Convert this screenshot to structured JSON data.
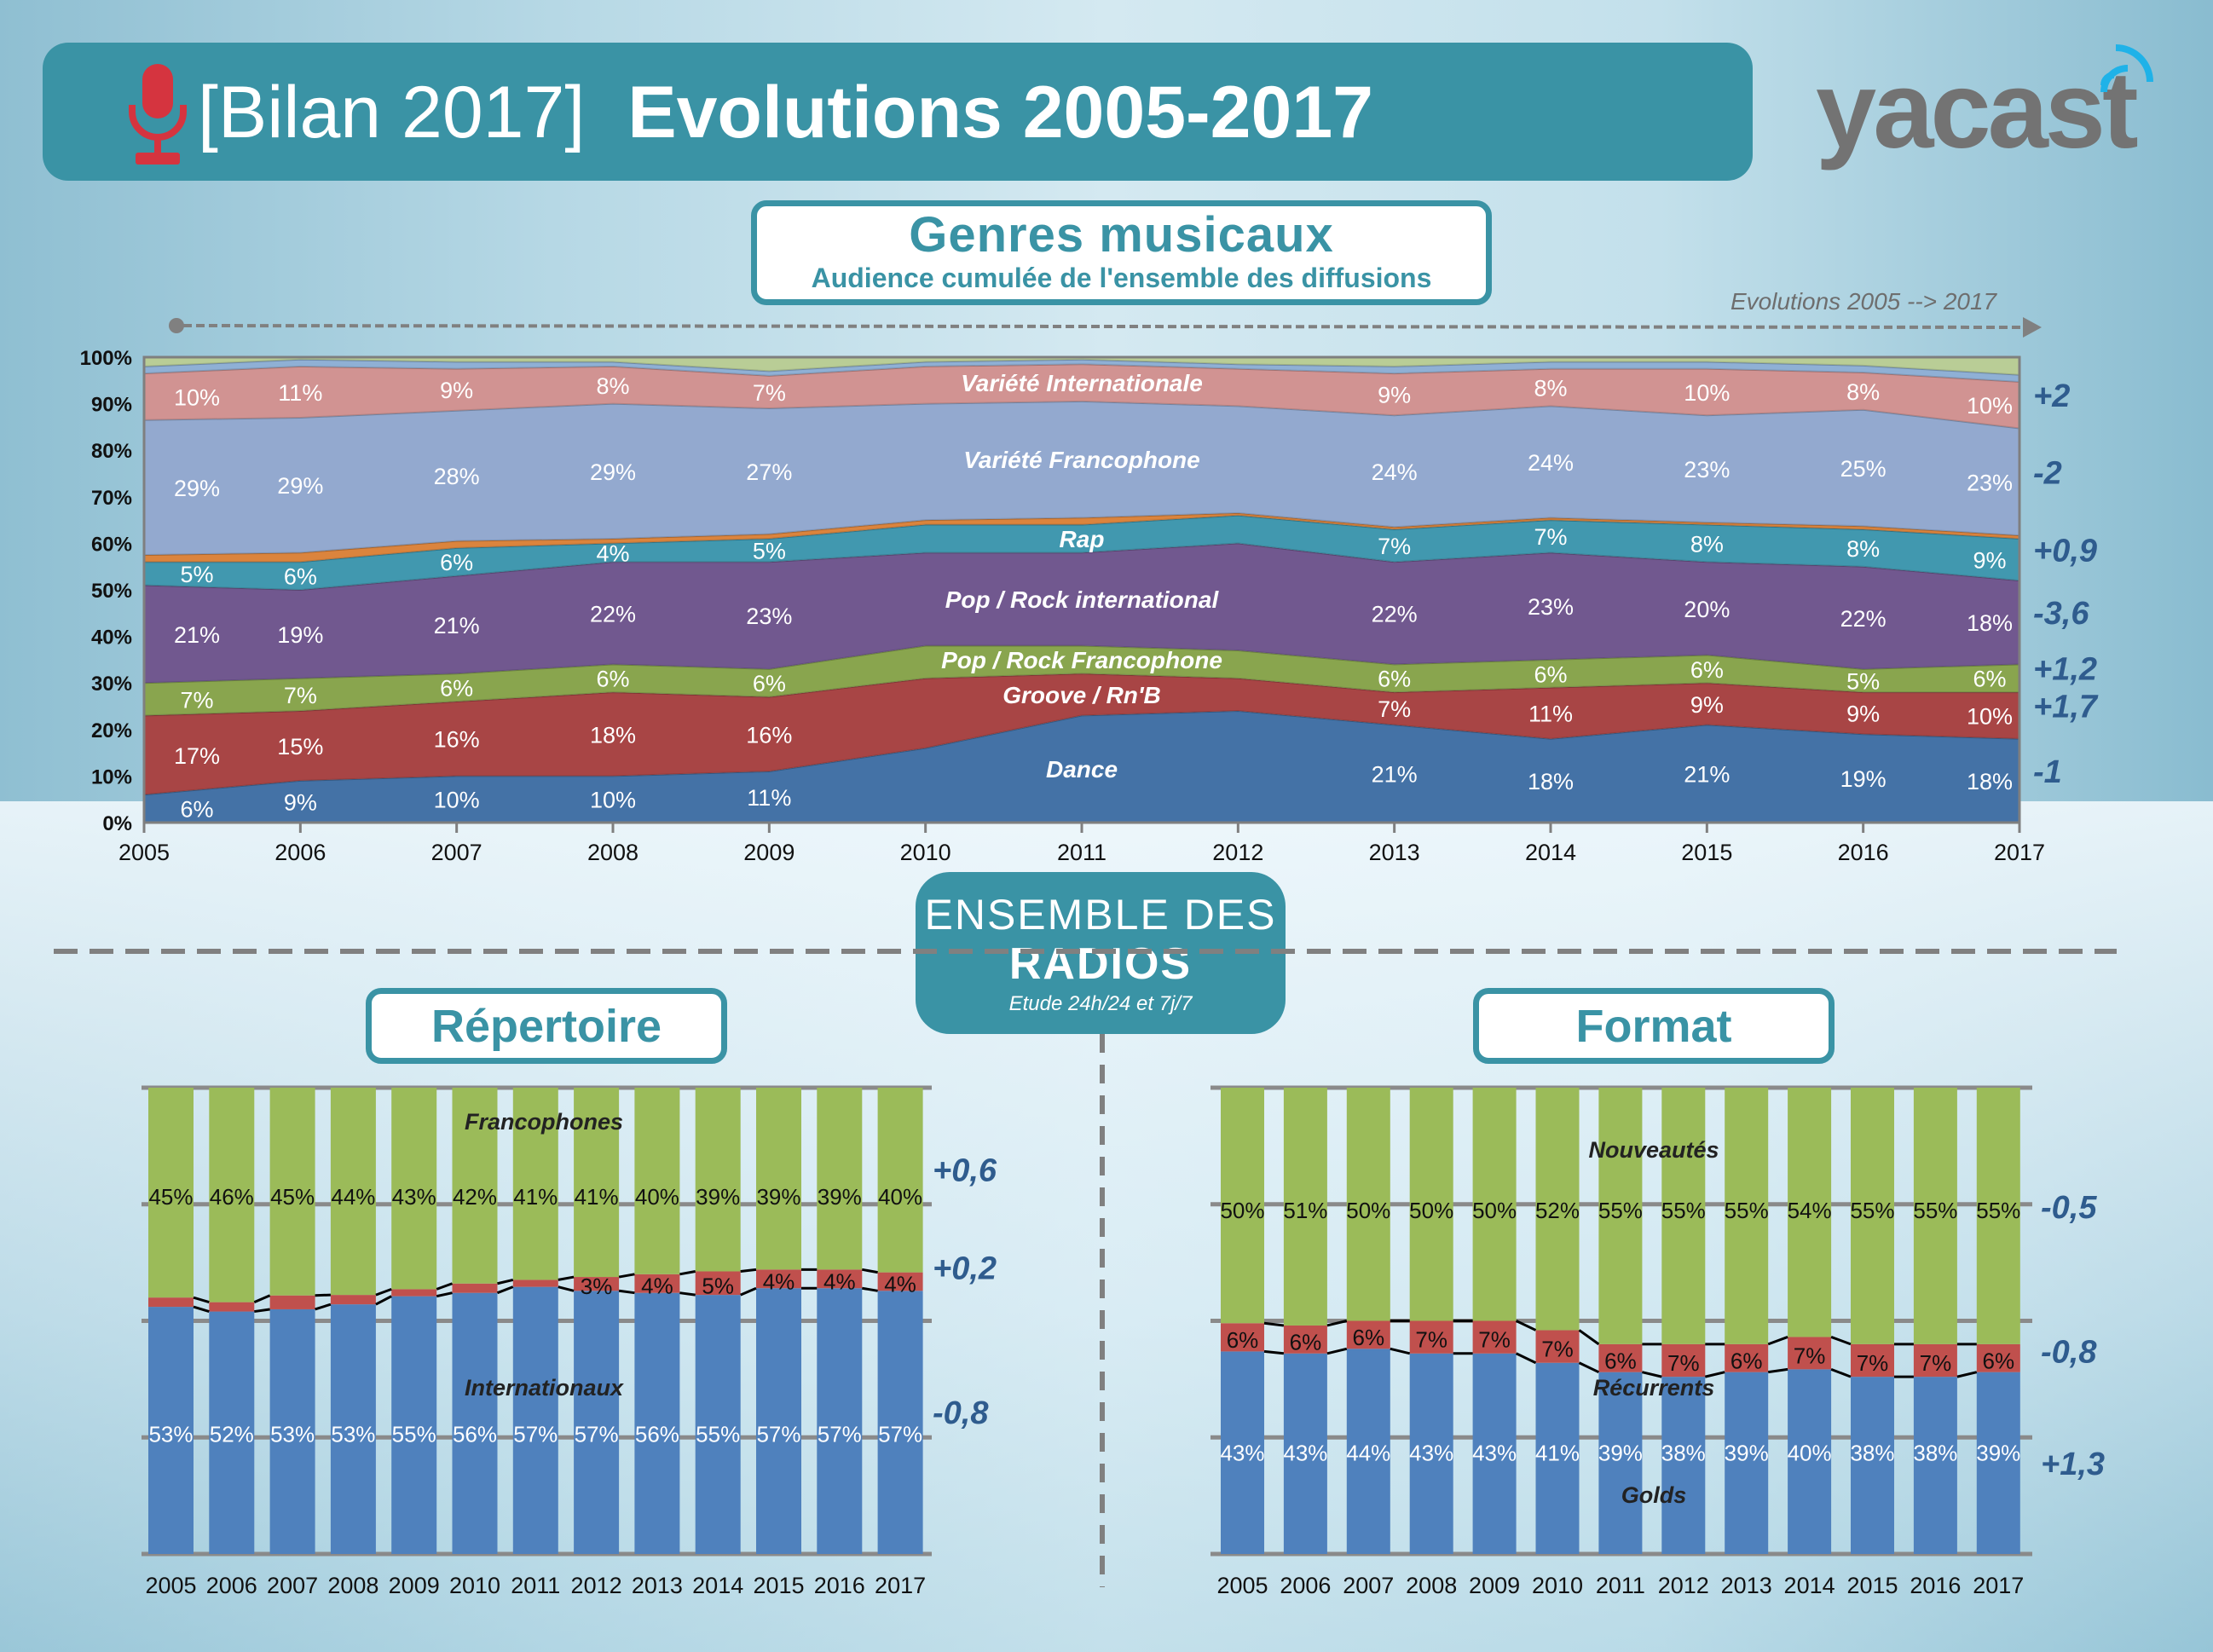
{
  "header": {
    "title_prefix": "[Bilan 2017]",
    "title_main": "Evolutions 2005-2017",
    "logo": "yacast"
  },
  "genres_box": {
    "title": "Genres musicaux",
    "subtitle": "Audience cumulée de l'ensemble des diffusions"
  },
  "evolution_label": "Evolutions 2005 --> 2017",
  "ensemble_box": {
    "line1": "ENSEMBLE DES",
    "line2": "RADIOS",
    "note": "Etude 24h/24 et 7j/7"
  },
  "repertoire_title": "Répertoire",
  "format_title": "Format",
  "colors": {
    "header": "#3a93a5",
    "delta": "#2f5c8e",
    "mic": "#d5343f",
    "logo_waves": "#1fb2e8"
  },
  "chart_data": [
    {
      "type": "area",
      "title": "Genres musicaux",
      "x": [
        2005,
        2006,
        2007,
        2008,
        2009,
        2010,
        2011,
        2012,
        2013,
        2014,
        2015,
        2016,
        2017
      ],
      "ylim": [
        0,
        100
      ],
      "yticks": [
        "0%",
        "10%",
        "20%",
        "30%",
        "40%",
        "50%",
        "60%",
        "70%",
        "80%",
        "90%",
        "100%"
      ],
      "series": [
        {
          "name": "Dance",
          "color": "#4472a6",
          "delta": "-1",
          "values": [
            6,
            9,
            10,
            10,
            11,
            16,
            23,
            24,
            21,
            18,
            21,
            19,
            18
          ],
          "labels": [
            "6%",
            "9%",
            "10%",
            "10%",
            "11%",
            null,
            null,
            null,
            "21%",
            "18%",
            "21%",
            "19%",
            "18%"
          ]
        },
        {
          "name": "Groove / Rn'B",
          "color": "#a84545",
          "delta": "+1,7",
          "values": [
            17,
            15,
            16,
            18,
            16,
            15,
            9,
            7,
            7,
            11,
            9,
            9,
            10
          ],
          "labels": [
            "17%",
            "15%",
            "16%",
            "18%",
            "16%",
            null,
            null,
            null,
            "7%",
            "11%",
            "9%",
            "9%",
            "10%"
          ]
        },
        {
          "name": "Pop / Rock Francophone",
          "color": "#89a54e",
          "delta": "+1,2",
          "values": [
            7,
            7,
            6,
            6,
            6,
            7,
            6,
            6,
            6,
            6,
            6,
            5,
            6
          ],
          "labels": [
            "7%",
            "7%",
            "6%",
            "6%",
            "6%",
            null,
            null,
            null,
            "6%",
            "6%",
            "6%",
            "5%",
            "6%"
          ]
        },
        {
          "name": "Pop / Rock international",
          "color": "#71588f",
          "delta": "-3,6",
          "values": [
            21,
            19,
            21,
            22,
            23,
            20,
            20,
            23,
            22,
            23,
            20,
            22,
            18
          ],
          "labels": [
            "21%",
            "19%",
            "21%",
            "22%",
            "23%",
            null,
            null,
            null,
            "22%",
            "23%",
            "20%",
            "22%",
            "18%"
          ]
        },
        {
          "name": "Rap",
          "color": "#4198af",
          "delta": "+0,9",
          "values": [
            5,
            6,
            6,
            4,
            5,
            6,
            6,
            6,
            7,
            7,
            8,
            8,
            9
          ],
          "labels": [
            "5%",
            "6%",
            "6%",
            "4%",
            "5%",
            null,
            null,
            null,
            "7%",
            "7%",
            "8%",
            "8%",
            "9%"
          ]
        },
        {
          "name": null,
          "color": "#db843d",
          "delta": null,
          "values": [
            1.5,
            2,
            1.5,
            1,
            1,
            1,
            1.5,
            0.5,
            0.5,
            0.5,
            0.5,
            0.7,
            0.7
          ],
          "labels": null
        },
        {
          "name": "Variété Francophone",
          "color": "#93a9cf",
          "delta": "-2",
          "values": [
            29,
            29,
            28,
            29,
            27,
            25,
            25,
            23,
            24,
            24,
            23,
            25,
            23
          ],
          "labels": [
            "29%",
            "29%",
            "28%",
            "29%",
            "27%",
            null,
            null,
            null,
            "24%",
            "24%",
            "23%",
            "25%",
            "23%"
          ]
        },
        {
          "name": "Variété Internationale",
          "color": "#d19392",
          "delta": "+2",
          "values": [
            10,
            11,
            9,
            8,
            7,
            8,
            8,
            8,
            9,
            8,
            10,
            8,
            10
          ],
          "labels": [
            "10%",
            "11%",
            "9%",
            "8%",
            "7%",
            null,
            null,
            null,
            "9%",
            "8%",
            "10%",
            "8%",
            "10%"
          ]
        },
        {
          "name": null,
          "color": "#8fb0d5",
          "delta": null,
          "values": [
            1.5,
            1.5,
            1.5,
            1,
            1,
            1,
            1,
            1,
            1.5,
            1.5,
            1.5,
            1.5,
            1.5
          ],
          "labels": null
        },
        {
          "name": null,
          "color": "#b9cd96",
          "delta": null,
          "values": "remainder",
          "labels": null
        }
      ]
    },
    {
      "type": "bar",
      "title": "Répertoire",
      "categories": [
        "2005",
        "2006",
        "2007",
        "2008",
        "2009",
        "2010",
        "2011",
        "2012",
        "2013",
        "2014",
        "2015",
        "2016",
        "2017"
      ],
      "series": [
        {
          "name": "Internationaux",
          "color": "#4f81bd",
          "delta": "-0,8",
          "values": [
            53,
            52,
            53,
            53,
            55,
            56,
            57,
            57,
            56,
            55,
            57,
            57,
            57
          ],
          "labels": [
            "53%",
            "52%",
            "53%",
            "53%",
            "55%",
            "56%",
            "57%",
            "57%",
            "56%",
            "55%",
            "57%",
            "57%",
            "57%"
          ]
        },
        {
          "name": null,
          "color": "#c0504d",
          "delta": "+0,2",
          "values": [
            2,
            2,
            3,
            2,
            1.5,
            2,
            1.5,
            3,
            4,
            5,
            4,
            4,
            4
          ],
          "labels": [
            null,
            null,
            null,
            null,
            null,
            null,
            null,
            "3%",
            "4%",
            "5%",
            "4%",
            "4%",
            "4%"
          ]
        },
        {
          "name": "Francophones",
          "color": "#9bbb59",
          "delta": "+0,6",
          "values": [
            45,
            46,
            45,
            44,
            43,
            42,
            41,
            41,
            40,
            39,
            39,
            39,
            40
          ],
          "labels": [
            "45%",
            "46%",
            "45%",
            "44%",
            "43%",
            "42%",
            "41%",
            "41%",
            "40%",
            "39%",
            "39%",
            "39%",
            "40%"
          ]
        }
      ]
    },
    {
      "type": "bar",
      "title": "Format",
      "categories": [
        "2005",
        "2006",
        "2007",
        "2008",
        "2009",
        "2010",
        "2011",
        "2012",
        "2013",
        "2014",
        "2015",
        "2016",
        "2017"
      ],
      "series": [
        {
          "name": "Golds",
          "color": "#4f81bd",
          "delta": "+1,3",
          "values": [
            43,
            43,
            44,
            43,
            43,
            41,
            39,
            38,
            39,
            40,
            38,
            38,
            39
          ],
          "labels": [
            "43%",
            "43%",
            "44%",
            "43%",
            "43%",
            "41%",
            "39%",
            "38%",
            "39%",
            "40%",
            "38%",
            "38%",
            "39%"
          ]
        },
        {
          "name": "Récurrents",
          "color": "#c0504d",
          "delta": "-0,8",
          "values": [
            6,
            6,
            6,
            7,
            7,
            7,
            6,
            7,
            6,
            7,
            7,
            7,
            6
          ],
          "labels": [
            "6%",
            "6%",
            "6%",
            "7%",
            "7%",
            "7%",
            "6%",
            "7%",
            "6%",
            "7%",
            "7%",
            "7%",
            "6%"
          ]
        },
        {
          "name": "Nouveautés",
          "color": "#9bbb59",
          "delta": "-0,5",
          "values": [
            50,
            51,
            50,
            50,
            50,
            52,
            55,
            55,
            55,
            54,
            55,
            55,
            55
          ],
          "labels": [
            "50%",
            "51%",
            "50%",
            "50%",
            "50%",
            "52%",
            "55%",
            "55%",
            "55%",
            "54%",
            "55%",
            "55%",
            "55%"
          ]
        }
      ]
    }
  ]
}
